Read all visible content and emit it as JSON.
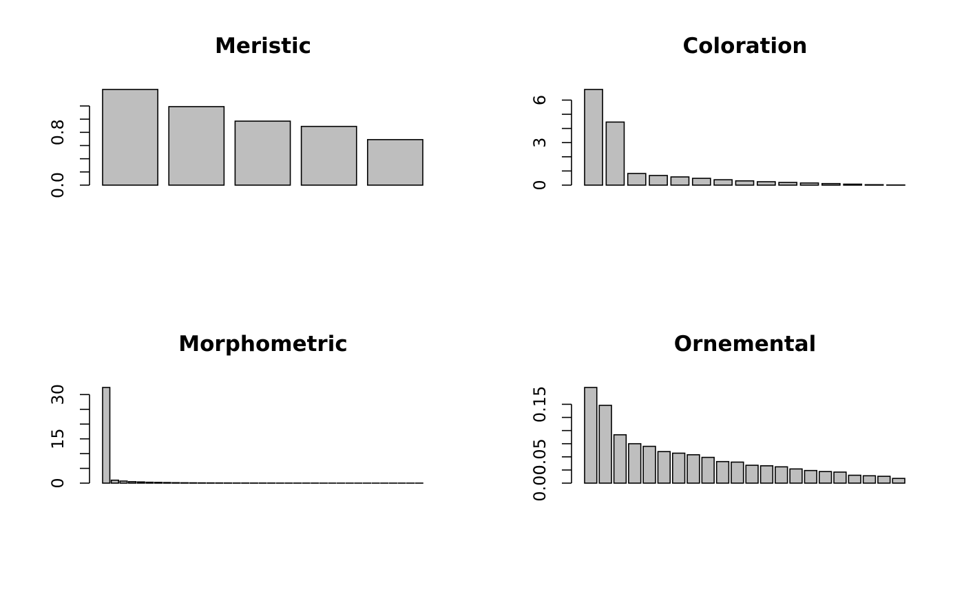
{
  "chart_data": [
    {
      "type": "bar",
      "title": "Meristic",
      "values": [
        1.45,
        1.19,
        0.97,
        0.89,
        0.69
      ],
      "ylim": [
        0,
        1.45
      ],
      "yticks": [
        0.0,
        0.2,
        0.4,
        0.6,
        0.8,
        1.0,
        1.2
      ],
      "yticklabels": [
        {
          "value": 0.0,
          "label": "0.0"
        },
        {
          "value": 0.8,
          "label": "0.8"
        }
      ],
      "colors": {
        "bar_fill": "#bebebe",
        "bar_stroke": "#000000"
      }
    },
    {
      "type": "bar",
      "title": "Coloration",
      "values": [
        6.75,
        4.45,
        0.82,
        0.68,
        0.58,
        0.48,
        0.38,
        0.3,
        0.24,
        0.19,
        0.15,
        0.11,
        0.07,
        0.03,
        0.01
      ],
      "ylim": [
        0,
        6.75
      ],
      "yticks": [
        0,
        1,
        2,
        3,
        4,
        5,
        6
      ],
      "yticklabels": [
        {
          "value": 0,
          "label": "0"
        },
        {
          "value": 3,
          "label": "3"
        },
        {
          "value": 6,
          "label": "6"
        }
      ],
      "colors": {
        "bar_fill": "#bebebe",
        "bar_stroke": "#000000"
      }
    },
    {
      "type": "bar",
      "title": "Morphometric",
      "values": [
        32.4,
        1.0,
        0.7,
        0.5,
        0.4,
        0.3,
        0.25,
        0.2,
        0.15,
        0.12,
        0.1,
        0.08,
        0.07,
        0.06,
        0.05,
        0.04,
        0.04,
        0.03,
        0.03,
        0.03,
        0.02,
        0.02,
        0.02,
        0.02,
        0.02,
        0.01,
        0.01,
        0.01,
        0.01,
        0.01,
        0.01,
        0.01,
        0.01,
        0.01,
        0.01,
        0.01,
        0.01
      ],
      "ylim": [
        0,
        32.4
      ],
      "yticks": [
        0,
        5,
        10,
        15,
        20,
        25,
        30
      ],
      "yticklabels": [
        {
          "value": 0,
          "label": "0"
        },
        {
          "value": 15,
          "label": "15"
        },
        {
          "value": 30,
          "label": "30"
        }
      ],
      "colors": {
        "bar_fill": "#bebebe",
        "bar_stroke": "#000000"
      }
    },
    {
      "type": "bar",
      "title": "Ornemental",
      "values": [
        0.182,
        0.148,
        0.092,
        0.075,
        0.07,
        0.06,
        0.057,
        0.054,
        0.049,
        0.041,
        0.04,
        0.034,
        0.033,
        0.031,
        0.027,
        0.024,
        0.022,
        0.021,
        0.015,
        0.014,
        0.013,
        0.009
      ],
      "ylim": [
        0,
        0.182
      ],
      "yticks": [
        0.0,
        0.025,
        0.05,
        0.075,
        0.1,
        0.125,
        0.15
      ],
      "yticklabels": [
        {
          "value": 0.0,
          "label": "0.00"
        },
        {
          "value": 0.05,
          "label": "0.05"
        },
        {
          "value": 0.15,
          "label": "0.15"
        }
      ],
      "colors": {
        "bar_fill": "#bebebe",
        "bar_stroke": "#000000"
      }
    }
  ]
}
